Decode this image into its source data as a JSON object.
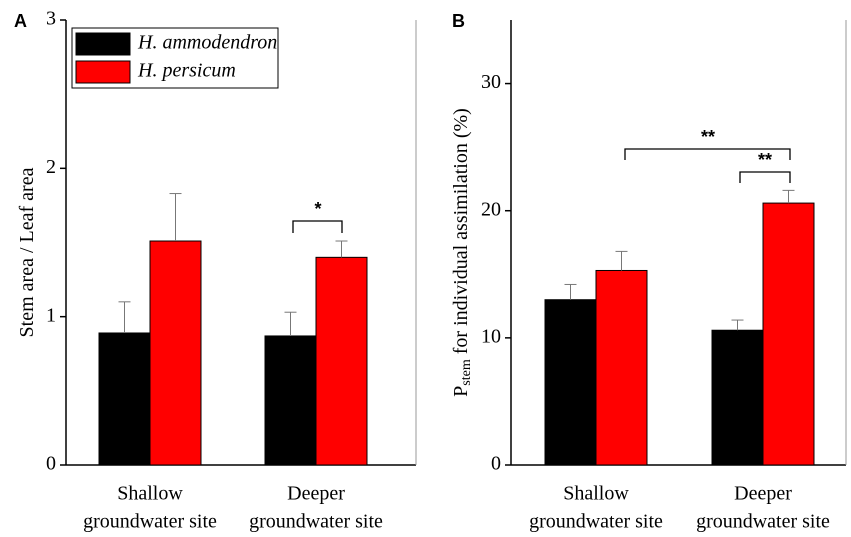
{
  "chart_data": [
    {
      "type": "bar",
      "panel": "A",
      "ylabel": [
        "Stem area / Leaf area"
      ],
      "categories": [
        [
          "Shallow",
          "groundwater site"
        ],
        [
          "Deeper",
          "groundwater site"
        ]
      ],
      "series": [
        {
          "name": "H. ammodendron",
          "color": "#000000",
          "values": [
            0.89,
            0.87
          ],
          "errors": [
            0.21,
            0.16
          ]
        },
        {
          "name": "H. persicum",
          "color": "#ff0000",
          "values": [
            1.51,
            1.4
          ],
          "errors": [
            0.32,
            0.11
          ]
        }
      ],
      "ylim": [
        0,
        3
      ],
      "yticks": [
        0,
        1,
        2,
        3
      ],
      "legend": "upper left",
      "annotations": [
        "*"
      ]
    },
    {
      "type": "bar",
      "panel": "B",
      "ylabel": [
        "P",
        "stem",
        " for individual assimilation (%)"
      ],
      "categories": [
        [
          "Shallow",
          "groundwater site"
        ],
        [
          "Deeper",
          "groundwater site"
        ]
      ],
      "series": [
        {
          "color": "#000000",
          "values": [
            13.0,
            10.6
          ],
          "errors": [
            1.2,
            0.8
          ]
        },
        {
          "color": "#ff0000",
          "values": [
            15.3,
            20.6
          ],
          "errors": [
            1.5,
            1.0
          ]
        }
      ],
      "ylim": [
        0,
        35
      ],
      "yticks": [
        0,
        10,
        20,
        30
      ],
      "annotations": [
        "**",
        "**"
      ]
    }
  ]
}
